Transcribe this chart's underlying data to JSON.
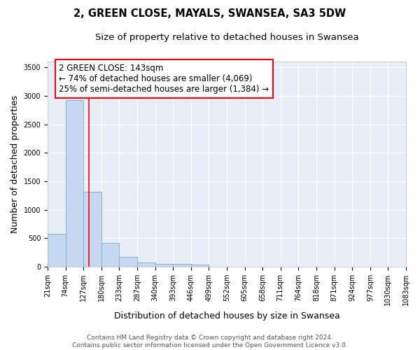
{
  "title": "2, GREEN CLOSE, MAYALS, SWANSEA, SA3 5DW",
  "subtitle": "Size of property relative to detached houses in Swansea",
  "xlabel": "Distribution of detached houses by size in Swansea",
  "ylabel": "Number of detached properties",
  "footer_line1": "Contains HM Land Registry data © Crown copyright and database right 2024.",
  "footer_line2": "Contains public sector information licensed under the Open Government Licence v3.0.",
  "bins": [
    21,
    74,
    127,
    180,
    233,
    287,
    340,
    393,
    446,
    499,
    552,
    605,
    658,
    711,
    764,
    818,
    871,
    924,
    977,
    1030,
    1083
  ],
  "bin_labels": [
    "21sqm",
    "74sqm",
    "127sqm",
    "180sqm",
    "233sqm",
    "287sqm",
    "340sqm",
    "393sqm",
    "446sqm",
    "499sqm",
    "552sqm",
    "605sqm",
    "658sqm",
    "711sqm",
    "764sqm",
    "818sqm",
    "871sqm",
    "924sqm",
    "977sqm",
    "1030sqm",
    "1083sqm"
  ],
  "values": [
    580,
    2920,
    1315,
    415,
    170,
    80,
    55,
    52,
    42,
    0,
    0,
    0,
    0,
    0,
    0,
    0,
    0,
    0,
    0,
    0
  ],
  "bar_color": "#c5d8f0",
  "bar_edge_color": "#7aadd4",
  "red_line_x": 143,
  "annotation_line1": "2 GREEN CLOSE: 143sqm",
  "annotation_line2": "← 74% of detached houses are smaller (4,069)",
  "annotation_line3": "25% of semi-detached houses are larger (1,384) →",
  "annotation_box_color": "white",
  "annotation_box_edge_color": "red",
  "ylim": [
    0,
    3600
  ],
  "yticks": [
    0,
    500,
    1000,
    1500,
    2000,
    2500,
    3000,
    3500
  ],
  "background_color": "#e8eef8",
  "grid_color": "#ffffff",
  "title_fontsize": 10.5,
  "subtitle_fontsize": 9.5,
  "ylabel_fontsize": 9,
  "xlabel_fontsize": 9,
  "tick_fontsize": 7,
  "footer_fontsize": 6.5,
  "annotation_fontsize": 8.5
}
